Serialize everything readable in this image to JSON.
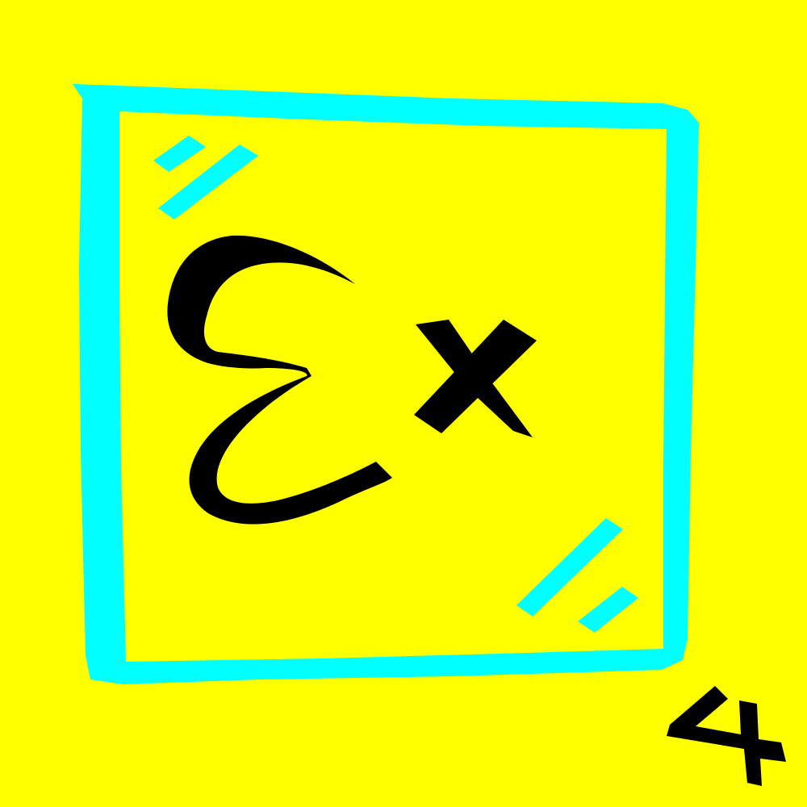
{
  "colors": {
    "background": "#ffff00",
    "frame": "#00ffff",
    "ink": "#000000"
  },
  "glyphs": {
    "main_letter": "Ɛ",
    "superscript": "x",
    "corner_number": "4"
  },
  "icons": {
    "frame": "hand-drawn-square-frame",
    "sparkles": "double-slash-glint"
  }
}
